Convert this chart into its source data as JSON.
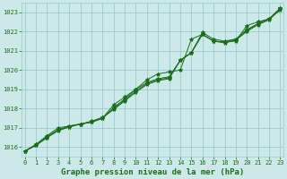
{
  "title": "Graphe pression niveau de la mer (hPa)",
  "hours": [
    0,
    1,
    2,
    3,
    4,
    5,
    6,
    7,
    8,
    9,
    10,
    11,
    12,
    13,
    14,
    15,
    16,
    17,
    18,
    19,
    20,
    21,
    22,
    23
  ],
  "series": [
    [
      1015.8,
      1016.1,
      1016.5,
      1016.9,
      1017.1,
      1017.2,
      1017.3,
      1017.5,
      1018.2,
      1018.6,
      1019.0,
      1019.5,
      1019.8,
      1019.9,
      1020.0,
      1021.6,
      1021.85,
      1021.5,
      1021.45,
      1021.5,
      1022.3,
      1022.5,
      1022.65,
      1023.1
    ],
    [
      1015.8,
      1016.15,
      1016.6,
      1017.0,
      1017.1,
      1017.2,
      1017.35,
      1017.55,
      1017.95,
      1018.4,
      1018.85,
      1019.25,
      1019.45,
      1019.55,
      1020.5,
      1020.9,
      1021.95,
      1021.6,
      1021.5,
      1021.6,
      1022.1,
      1022.4,
      1022.65,
      1023.2
    ],
    [
      1015.8,
      1016.1,
      1016.5,
      1016.85,
      1017.05,
      1017.2,
      1017.3,
      1017.5,
      1018.0,
      1018.45,
      1018.9,
      1019.3,
      1019.5,
      1019.6,
      1020.5,
      1020.9,
      1021.85,
      1021.5,
      1021.4,
      1021.55,
      1022.0,
      1022.35,
      1022.6,
      1023.15
    ],
    [
      1015.8,
      1016.1,
      1016.55,
      1016.9,
      1017.05,
      1017.2,
      1017.3,
      1017.5,
      1018.05,
      1018.5,
      1019.0,
      1019.35,
      1019.55,
      1019.65,
      1020.5,
      1020.9,
      1021.85,
      1021.5,
      1021.45,
      1021.6,
      1022.05,
      1022.4,
      1022.65,
      1023.2
    ]
  ],
  "line_color": "#1a6e1a",
  "marker": "*",
  "marker_size": 3,
  "bg_color": "#cce8e8",
  "grid_color": "#99cccc",
  "text_color": "#1a6e1a",
  "ylim": [
    1015.5,
    1023.5
  ],
  "yticks": [
    1016,
    1017,
    1018,
    1019,
    1020,
    1021,
    1022,
    1023
  ],
  "xticks": [
    0,
    1,
    2,
    3,
    4,
    5,
    6,
    7,
    8,
    9,
    10,
    11,
    12,
    13,
    14,
    15,
    16,
    17,
    18,
    19,
    20,
    21,
    22,
    23
  ],
  "xlim": [
    -0.3,
    23.3
  ]
}
